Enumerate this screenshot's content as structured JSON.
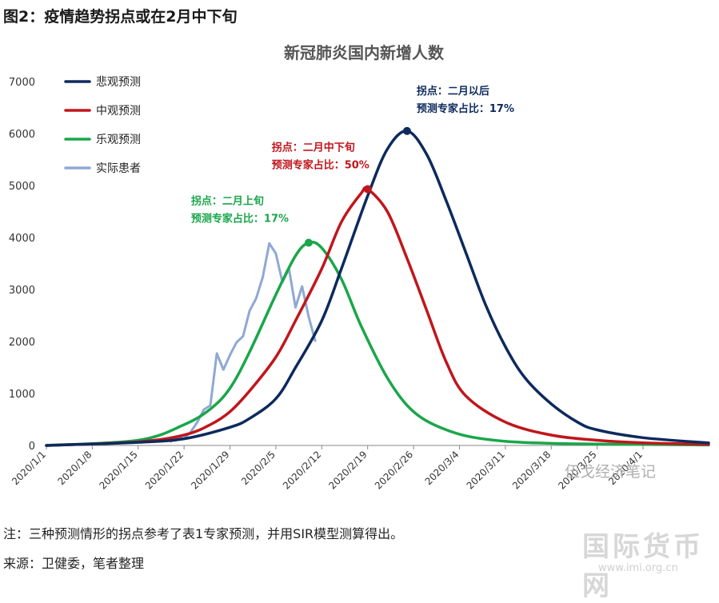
{
  "figure_title": "图2：疫情趋势拐点或在2月中下旬",
  "note_text": "注：三种预测情形的拐点参考了表1专家预测，并用SIR模型测算得出。",
  "source_text": "来源：卫健委，笔者整理",
  "watermark_account": "伍戈经济笔记",
  "watermark_logo_text": "国际货币网",
  "watermark_url": "www.imi.org.cn",
  "chart_data": {
    "type": "line",
    "title": "新冠肺炎国内新增人数",
    "xlabel": "",
    "ylabel": "",
    "ylim": [
      0,
      7000
    ],
    "yticks": [
      0,
      1000,
      2000,
      3000,
      4000,
      5000,
      6000,
      7000
    ],
    "x_start": "2020/1/1",
    "x_end": "2020/4/11",
    "xticks": [
      "2020/1/1",
      "2020/1/8",
      "2020/1/15",
      "2020/1/22",
      "2020/1/29",
      "2020/2/5",
      "2020/2/12",
      "2020/2/19",
      "2020/2/26",
      "2020/3/4",
      "2020/3/11",
      "2020/3/18",
      "2020/3/25",
      "2020/4/1"
    ],
    "grid": false,
    "legend_position": "top-left",
    "series": [
      {
        "name": "悲观预测",
        "color": "#0d2a5c",
        "points": [
          [
            "2020/1/1",
            0
          ],
          [
            "2020/1/15",
            60
          ],
          [
            "2020/1/22",
            130
          ],
          [
            "2020/1/29",
            350
          ],
          [
            "2020/2/1",
            520
          ],
          [
            "2020/2/5",
            900
          ],
          [
            "2020/2/8",
            1500
          ],
          [
            "2020/2/12",
            2400
          ],
          [
            "2020/2/15",
            3400
          ],
          [
            "2020/2/19",
            4800
          ],
          [
            "2020/2/22",
            5700
          ],
          [
            "2020/2/25",
            6050
          ],
          [
            "2020/2/28",
            5600
          ],
          [
            "2020/3/2",
            4700
          ],
          [
            "2020/3/5",
            3700
          ],
          [
            "2020/3/8",
            2700
          ],
          [
            "2020/3/11",
            1900
          ],
          [
            "2020/3/14",
            1300
          ],
          [
            "2020/3/18",
            800
          ],
          [
            "2020/3/22",
            450
          ],
          [
            "2020/3/25",
            300
          ],
          [
            "2020/4/1",
            150
          ],
          [
            "2020/4/11",
            50
          ]
        ]
      },
      {
        "name": "中观预测",
        "color": "#c0161c",
        "points": [
          [
            "2020/1/1",
            0
          ],
          [
            "2020/1/15",
            70
          ],
          [
            "2020/1/22",
            200
          ],
          [
            "2020/1/26",
            400
          ],
          [
            "2020/1/29",
            650
          ],
          [
            "2020/2/1",
            1050
          ],
          [
            "2020/2/5",
            1700
          ],
          [
            "2020/2/8",
            2400
          ],
          [
            "2020/2/12",
            3400
          ],
          [
            "2020/2/15",
            4300
          ],
          [
            "2020/2/18",
            4850
          ],
          [
            "2020/2/19",
            4930
          ],
          [
            "2020/2/22",
            4500
          ],
          [
            "2020/2/25",
            3600
          ],
          [
            "2020/2/28",
            2600
          ],
          [
            "2020/3/2",
            1600
          ],
          [
            "2020/3/5",
            950
          ],
          [
            "2020/3/11",
            450
          ],
          [
            "2020/3/18",
            200
          ],
          [
            "2020/3/25",
            100
          ],
          [
            "2020/4/1",
            50
          ],
          [
            "2020/4/11",
            20
          ]
        ]
      },
      {
        "name": "乐观预测",
        "color": "#1aa64a",
        "points": [
          [
            "2020/1/1",
            0
          ],
          [
            "2020/1/15",
            100
          ],
          [
            "2020/1/22",
            400
          ],
          [
            "2020/1/26",
            700
          ],
          [
            "2020/1/29",
            1100
          ],
          [
            "2020/2/1",
            1800
          ],
          [
            "2020/2/5",
            2900
          ],
          [
            "2020/2/8",
            3650
          ],
          [
            "2020/2/10",
            3900
          ],
          [
            "2020/2/12",
            3800
          ],
          [
            "2020/2/15",
            3200
          ],
          [
            "2020/2/18",
            2300
          ],
          [
            "2020/2/22",
            1300
          ],
          [
            "2020/2/26",
            650
          ],
          [
            "2020/3/2",
            300
          ],
          [
            "2020/3/8",
            120
          ],
          [
            "2020/3/18",
            40
          ],
          [
            "2020/4/11",
            10
          ]
        ]
      },
      {
        "name": "实际患者",
        "color": "#8fa8d4",
        "points": [
          [
            "2020/1/20",
            77
          ],
          [
            "2020/1/21",
            149
          ],
          [
            "2020/1/22",
            131
          ],
          [
            "2020/1/23",
            259
          ],
          [
            "2020/1/24",
            444
          ],
          [
            "2020/1/25",
            688
          ],
          [
            "2020/1/26",
            769
          ],
          [
            "2020/1/27",
            1771
          ],
          [
            "2020/1/28",
            1459
          ],
          [
            "2020/1/29",
            1737
          ],
          [
            "2020/1/30",
            1982
          ],
          [
            "2020/1/31",
            2102
          ],
          [
            "2020/2/1",
            2590
          ],
          [
            "2020/2/2",
            2829
          ],
          [
            "2020/2/3",
            3235
          ],
          [
            "2020/2/4",
            3887
          ],
          [
            "2020/2/5",
            3694
          ],
          [
            "2020/2/6",
            3143
          ],
          [
            "2020/2/7",
            3399
          ],
          [
            "2020/2/8",
            2656
          ],
          [
            "2020/2/9",
            3062
          ],
          [
            "2020/2/10",
            2478
          ],
          [
            "2020/2/11",
            2015
          ]
        ]
      }
    ],
    "annotations": [
      {
        "series": "悲观预测",
        "color": "#0d2a5c",
        "at": [
          "2020/2/25",
          6050
        ],
        "line1": "拐点：二月以后",
        "line2": "预测专家占比：17%"
      },
      {
        "series": "中观预测",
        "color": "#c0161c",
        "at": [
          "2020/2/19",
          4930
        ],
        "line1": "拐点：二月中下旬",
        "line2": "预测专家占比：50%"
      },
      {
        "series": "乐观预测",
        "color": "#1aa64a",
        "at": [
          "2020/2/10",
          3900
        ],
        "line1": "拐点：二月上旬",
        "line2": "预测专家占比：17%"
      }
    ]
  }
}
